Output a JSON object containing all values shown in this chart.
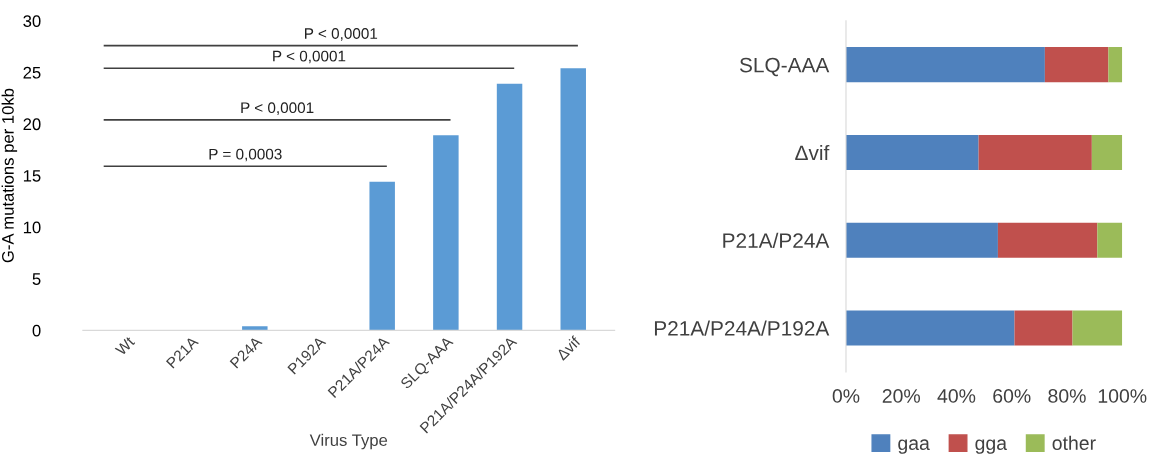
{
  "chart_data": [
    {
      "type": "bar",
      "xlabel": "Virus Type",
      "ylabel": "G-A mutations per 10kb",
      "categories": [
        "Wt",
        "P21A",
        "P24A",
        "P192A",
        "P21A/P24A",
        "SLQ-AAA",
        "P21A/P24A/P192A",
        "Δvif"
      ],
      "values": [
        0,
        0,
        0.4,
        0,
        14.4,
        18.9,
        23.9,
        25.4
      ],
      "color": "#5b9bd5",
      "ylim": [
        0,
        30
      ],
      "yticks": [
        0,
        5,
        10,
        15,
        20,
        25,
        30
      ],
      "legend": false,
      "annotations": [
        "P = 0,0003",
        "P < 0,0001",
        "P < 0,0001",
        "P < 0,0001"
      ]
    },
    {
      "type": "bar",
      "orientation": "horizontal",
      "stacked": true,
      "categories": [
        "SLQ-AAA",
        "Δvif",
        "P21A/P24A",
        "P21A/P24A/P192A"
      ],
      "series": [
        {
          "name": "gaa",
          "color": "#4f81bd",
          "values": [
            72,
            48,
            55,
            61
          ]
        },
        {
          "name": "gga",
          "color": "#c0504d",
          "values": [
            23,
            41,
            36,
            21
          ]
        },
        {
          "name": "other",
          "color": "#9bbb59",
          "values": [
            5,
            11,
            9,
            18
          ]
        }
      ],
      "xlim": [
        0,
        100
      ],
      "xticks": [
        {
          "value": 0,
          "label": "0%"
        },
        {
          "value": 20,
          "label": "20%"
        },
        {
          "value": 40,
          "label": "40%"
        },
        {
          "value": 60,
          "label": "60%"
        },
        {
          "value": 80,
          "label": "80%"
        },
        {
          "value": 100,
          "label": "100%"
        }
      ],
      "legend": "bottom"
    }
  ]
}
